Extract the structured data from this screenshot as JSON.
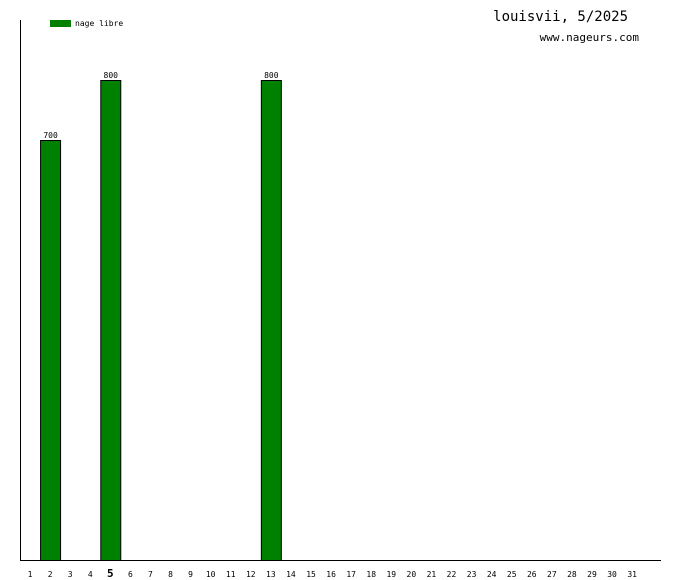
{
  "header": {
    "title": "louisvii, 5/2025",
    "site": "www.nageurs.com"
  },
  "chart_data": {
    "type": "bar",
    "title": "louisvii, 5/2025",
    "xlabel": "",
    "ylabel": "",
    "categories": [
      "1",
      "2",
      "3",
      "4",
      "5",
      "6",
      "7",
      "8",
      "9",
      "10",
      "11",
      "12",
      "13",
      "14",
      "15",
      "16",
      "17",
      "18",
      "19",
      "20",
      "21",
      "22",
      "23",
      "24",
      "25",
      "26",
      "27",
      "28",
      "29",
      "30",
      "31"
    ],
    "highlighted_category": "5",
    "series": [
      {
        "name": "nage libre",
        "color": "#008000",
        "values": [
          null,
          700,
          null,
          null,
          800,
          null,
          null,
          null,
          null,
          null,
          null,
          null,
          800,
          null,
          null,
          null,
          null,
          null,
          null,
          null,
          null,
          null,
          null,
          null,
          null,
          null,
          null,
          null,
          null,
          null,
          null
        ]
      }
    ],
    "ylim": [
      0,
      900
    ],
    "grid": false,
    "legend_position": "top-left"
  }
}
